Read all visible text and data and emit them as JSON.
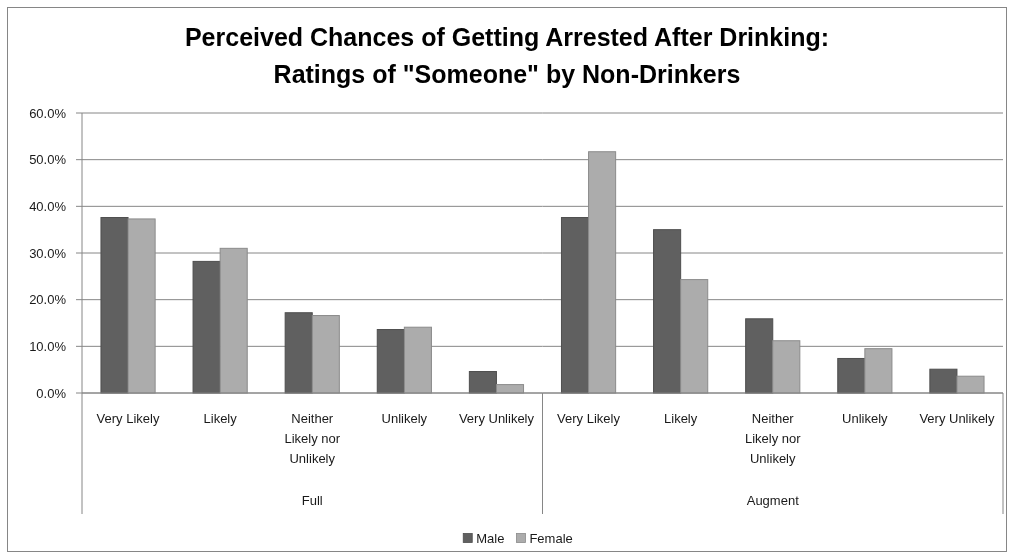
{
  "chart_data": [
    {
      "type": "bar",
      "title": "Perceived Chances of Getting Arrested After Drinking: Ratings of \"Someone\" by Non-Drinkers",
      "categories": [
        "Very Likely",
        "Likely",
        "Neither Likely nor Unlikely",
        "Unlikely",
        "Very Unlikely"
      ],
      "xlabel": "Full",
      "series": [
        {
          "name": "Male",
          "color": "#606060",
          "values": [
            37.6,
            28.2,
            17.2,
            13.6,
            4.6
          ]
        },
        {
          "name": "Female",
          "color": "#acacac",
          "values": [
            37.3,
            31.0,
            16.6,
            14.1,
            1.8
          ]
        }
      ],
      "ylim": [
        0,
        60
      ],
      "yticks": [
        {
          "value": 0,
          "label": "0.0%"
        },
        {
          "value": 10,
          "label": "10.0%"
        },
        {
          "value": 20,
          "label": "20.0%"
        },
        {
          "value": 30,
          "label": "30.0%"
        },
        {
          "value": 40,
          "label": "40.0%"
        },
        {
          "value": 50,
          "label": "50.0%"
        },
        {
          "value": 60,
          "label": "60.0%"
        }
      ],
      "grid": "y",
      "legend": "bottom"
    },
    {
      "type": "bar",
      "categories": [
        "Very Likely",
        "Likely",
        "Neither Likely nor Unlikely",
        "Unlikely",
        "Very Unlikely"
      ],
      "xlabel": "Augment",
      "series": [
        {
          "name": "Male",
          "color": "#606060",
          "values": [
            37.6,
            35.0,
            15.9,
            7.4,
            5.1
          ]
        },
        {
          "name": "Female",
          "color": "#acacac",
          "values": [
            51.7,
            24.3,
            11.2,
            9.5,
            3.6
          ]
        }
      ],
      "ylim": [
        0,
        60
      ],
      "yticks": [
        0,
        10,
        20,
        30,
        40,
        50,
        60
      ],
      "grid": "y",
      "tick_labels": "x"
    }
  ]
}
